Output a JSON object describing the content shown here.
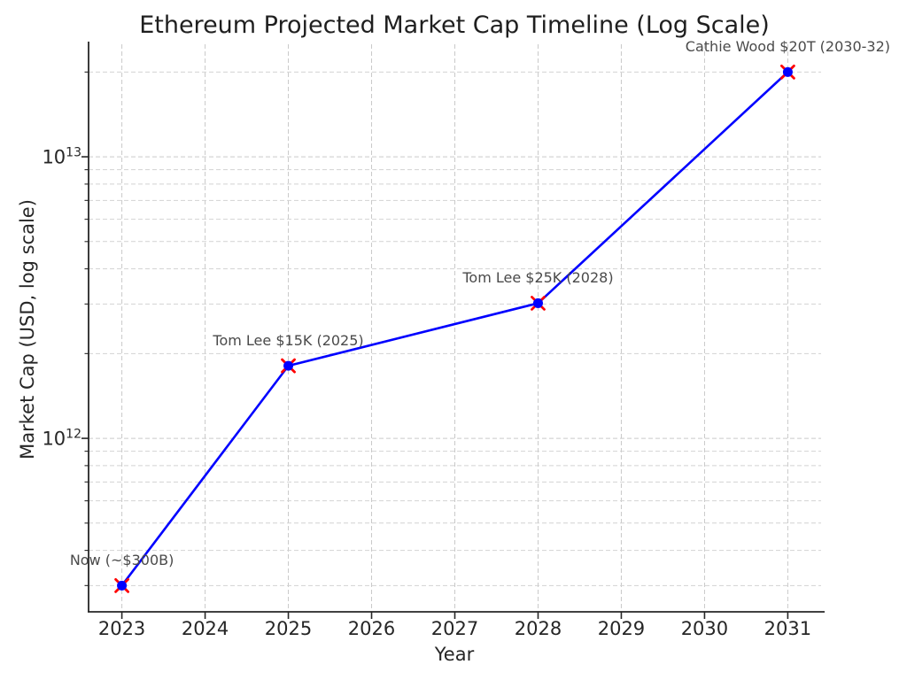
{
  "chart_data": {
    "type": "line",
    "title": "Ethereum Projected Market Cap Timeline (Log Scale)",
    "xlabel": "Year",
    "ylabel": "Market Cap (USD, log scale)",
    "yscale": "log",
    "grid": true,
    "legend": false,
    "xlim": [
      2022.6,
      2031.4
    ],
    "ylim": [
      242000000000.0,
      25100000000000.0
    ],
    "x_ticks": [
      2023,
      2024,
      2025,
      2026,
      2027,
      2028,
      2029,
      2030,
      2031
    ],
    "y_major_ticks": [
      {
        "value": 1000000000000.0,
        "base": "10",
        "exponent": "12"
      },
      {
        "value": 10000000000000.0,
        "base": "10",
        "exponent": "13"
      }
    ],
    "series": [
      {
        "name": "Ethereum projected market cap",
        "line_color": "#0000ff",
        "marker_dot_color": "#0000ff",
        "marker_x_color": "#ff0000",
        "points": [
          {
            "x": 2023,
            "y": 300000000000.0,
            "annotation": "Now (~$300B)"
          },
          {
            "x": 2025,
            "y": 1810000000000.0,
            "annotation": "Tom Lee $15K (2025)"
          },
          {
            "x": 2028,
            "y": 3020000000000.0,
            "annotation": "Tom Lee $25K (2028)"
          },
          {
            "x": 2031,
            "y": 20000000000000.0,
            "annotation": "Cathie Wood $20T (2030-32)"
          }
        ]
      }
    ]
  },
  "style": {
    "background": "#ffffff",
    "grid_color": "#c9c9c9",
    "spine_color": "#262626",
    "tick_label_color": "#262626",
    "title_color": "#1f1f1f",
    "annotation_color": "#4a4a4a"
  }
}
